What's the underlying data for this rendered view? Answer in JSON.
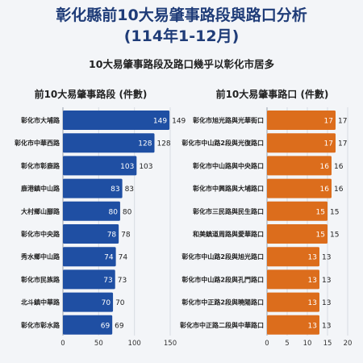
{
  "header": {
    "title_line1": "彰化縣前10大易肇事路段與路口分析",
    "title_line2": "(114年1-12月)",
    "subtitle": "10大易肇事路段及路口幾乎以彰化市居多"
  },
  "colors": {
    "road_bar": "#1f4fa3",
    "intersection_bar": "#dc6d1c",
    "title": "#1f3c78"
  },
  "chart_data": [
    {
      "type": "bar",
      "orientation": "horizontal",
      "title": "前10大易肇事路段 (件數)",
      "categories": [
        "彰化市大埔路",
        "彰化市中華西路",
        "彰化市彰鹿路",
        "鹿港鎮中山路",
        "大村鄉山腳路",
        "彰化市中央路",
        "秀水鄉中山路",
        "彰化市民族路",
        "北斗鎮中華路",
        "彰化市彰水路"
      ],
      "values": [
        149,
        128,
        103,
        83,
        80,
        78,
        74,
        73,
        70,
        69
      ],
      "xlim": [
        0,
        150
      ],
      "xticks": [
        "0",
        "50",
        "100",
        "150"
      ],
      "grid": true
    },
    {
      "type": "bar",
      "orientation": "horizontal",
      "title": "前10大易肇事路口 (件數)",
      "categories": [
        "彰化市旭光路與光華街口",
        "彰化市中山路2段與光復路口",
        "彰化市中山路與中央路口",
        "彰化市中興路與大埔路口",
        "彰化市三民路與民生路口",
        "和美鎮道周路與愛華路口",
        "彰化市中山路2段與旭光路口",
        "彰化市中山路2段與孔門路口",
        "彰化市中正路2段與曉陽路口",
        "彰化市中正路二段與中華路口"
      ],
      "values": [
        17,
        17,
        16,
        16,
        15,
        15,
        13,
        13,
        13,
        13
      ],
      "xlim": [
        0,
        20
      ],
      "xticks": [
        "0",
        "5",
        "10",
        "15",
        "20"
      ],
      "grid": true
    }
  ]
}
